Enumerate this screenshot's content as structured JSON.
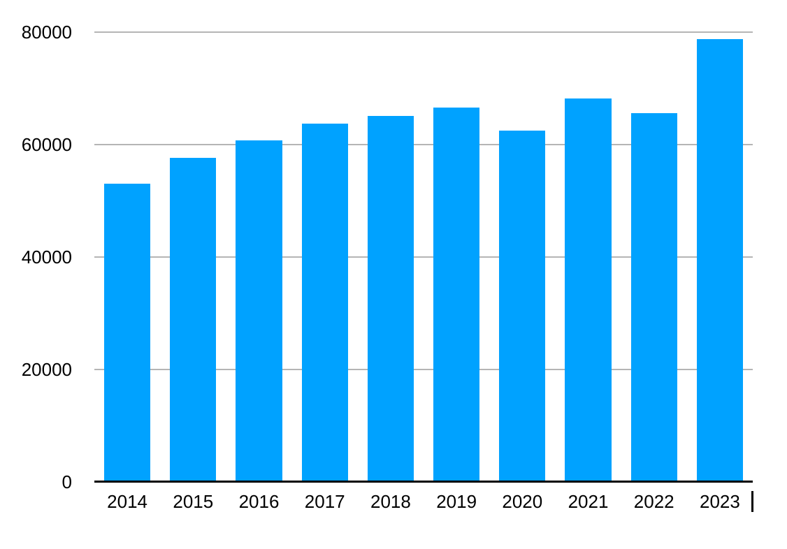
{
  "chart_data": {
    "type": "bar",
    "title": "",
    "xlabel": "",
    "ylabel": "",
    "categories": [
      "2014",
      "2015",
      "2016",
      "2017",
      "2018",
      "2019",
      "2020",
      "2021",
      "2022",
      "2023"
    ],
    "values": [
      53100,
      57700,
      60700,
      63700,
      65100,
      66600,
      62500,
      68200,
      65600,
      78800
    ],
    "ylim": [
      0,
      80000
    ],
    "yticks": [
      0,
      20000,
      40000,
      60000,
      80000
    ],
    "ytick_labels": [
      "0",
      "20000",
      "40000",
      "60000",
      "80000"
    ],
    "grid": "horizontal-gridlines-only",
    "legend": "none",
    "colors": {
      "bar": "#00A2FF",
      "gridline": "#B5B5B5",
      "axis_line": "#000000",
      "text": "#000000",
      "background": "#FFFFFF"
    }
  }
}
